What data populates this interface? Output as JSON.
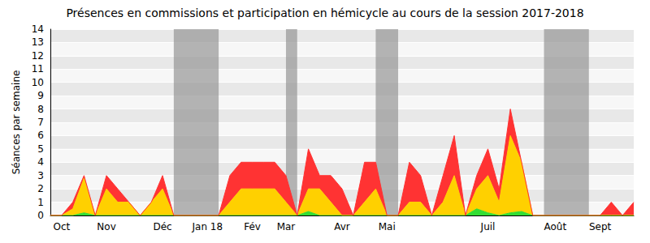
{
  "chart_data": {
    "type": "area",
    "title": "Présences en commissions et participation en hémicycle au cours de la session 2017-2018",
    "y_label": "Séances par semaine",
    "categories": [
      null,
      "Oct",
      null,
      null,
      null,
      "Nov",
      null,
      null,
      null,
      null,
      "Déc",
      null,
      null,
      null,
      "Jan 18",
      null,
      null,
      null,
      "Fév",
      null,
      null,
      "Mar",
      null,
      null,
      null,
      null,
      "Avr",
      null,
      null,
      null,
      "Mai",
      null,
      null,
      null,
      null,
      null,
      null,
      null,
      null,
      "Juil",
      null,
      null,
      null,
      null,
      null,
      "Août",
      null,
      null,
      null,
      "Sept",
      null,
      null,
      null
    ],
    "series": [
      {
        "color": "#33dd33",
        "values": [
          0,
          0,
          0,
          0.2,
          0,
          0,
          0,
          0,
          0,
          0,
          0,
          0,
          0,
          0,
          0,
          0,
          0,
          0,
          0,
          0,
          0,
          0,
          0,
          0.3,
          0,
          0,
          0,
          0,
          0,
          0,
          0,
          0,
          0,
          0,
          0,
          0,
          0,
          0,
          0.5,
          0.2,
          0,
          0.2,
          0.3,
          0,
          0,
          0,
          0,
          0,
          0,
          0,
          0,
          0,
          0
        ]
      },
      {
        "color": "#ffd000",
        "values": [
          0,
          0,
          0.5,
          2.6,
          0,
          2,
          1,
          1,
          0,
          1,
          2,
          0,
          0,
          0,
          0,
          0,
          1,
          2,
          2,
          2,
          2,
          1,
          0,
          1.7,
          2,
          1,
          0,
          0,
          1,
          2,
          0,
          0,
          1,
          1,
          0,
          1,
          3,
          0,
          1.5,
          2.8,
          1,
          5.8,
          3.7,
          0,
          0,
          0,
          0,
          0,
          0,
          0,
          0,
          0,
          0
        ]
      },
      {
        "color": "#ff3333",
        "values": [
          0,
          0,
          0.5,
          0.2,
          0,
          1,
          1,
          0,
          0,
          0,
          1,
          0,
          0,
          0,
          0,
          0,
          2,
          2,
          2,
          2,
          2,
          2,
          0,
          3,
          1,
          2,
          2,
          0,
          3,
          2,
          0,
          0,
          3,
          2,
          0,
          2,
          3,
          0,
          1,
          2,
          1,
          2,
          0,
          0,
          0,
          0,
          0,
          0,
          0,
          0,
          1,
          0,
          1
        ]
      }
    ],
    "stacked": true,
    "vacations": [
      [
        11,
        15
      ],
      [
        21,
        22
      ],
      [
        29,
        31
      ],
      [
        44,
        48
      ]
    ],
    "ylim": [
      0,
      14
    ],
    "yticks": [
      0,
      1,
      2,
      3,
      4,
      5,
      6,
      7,
      8,
      9,
      10,
      11,
      12,
      13,
      14
    ],
    "grid": true
  }
}
